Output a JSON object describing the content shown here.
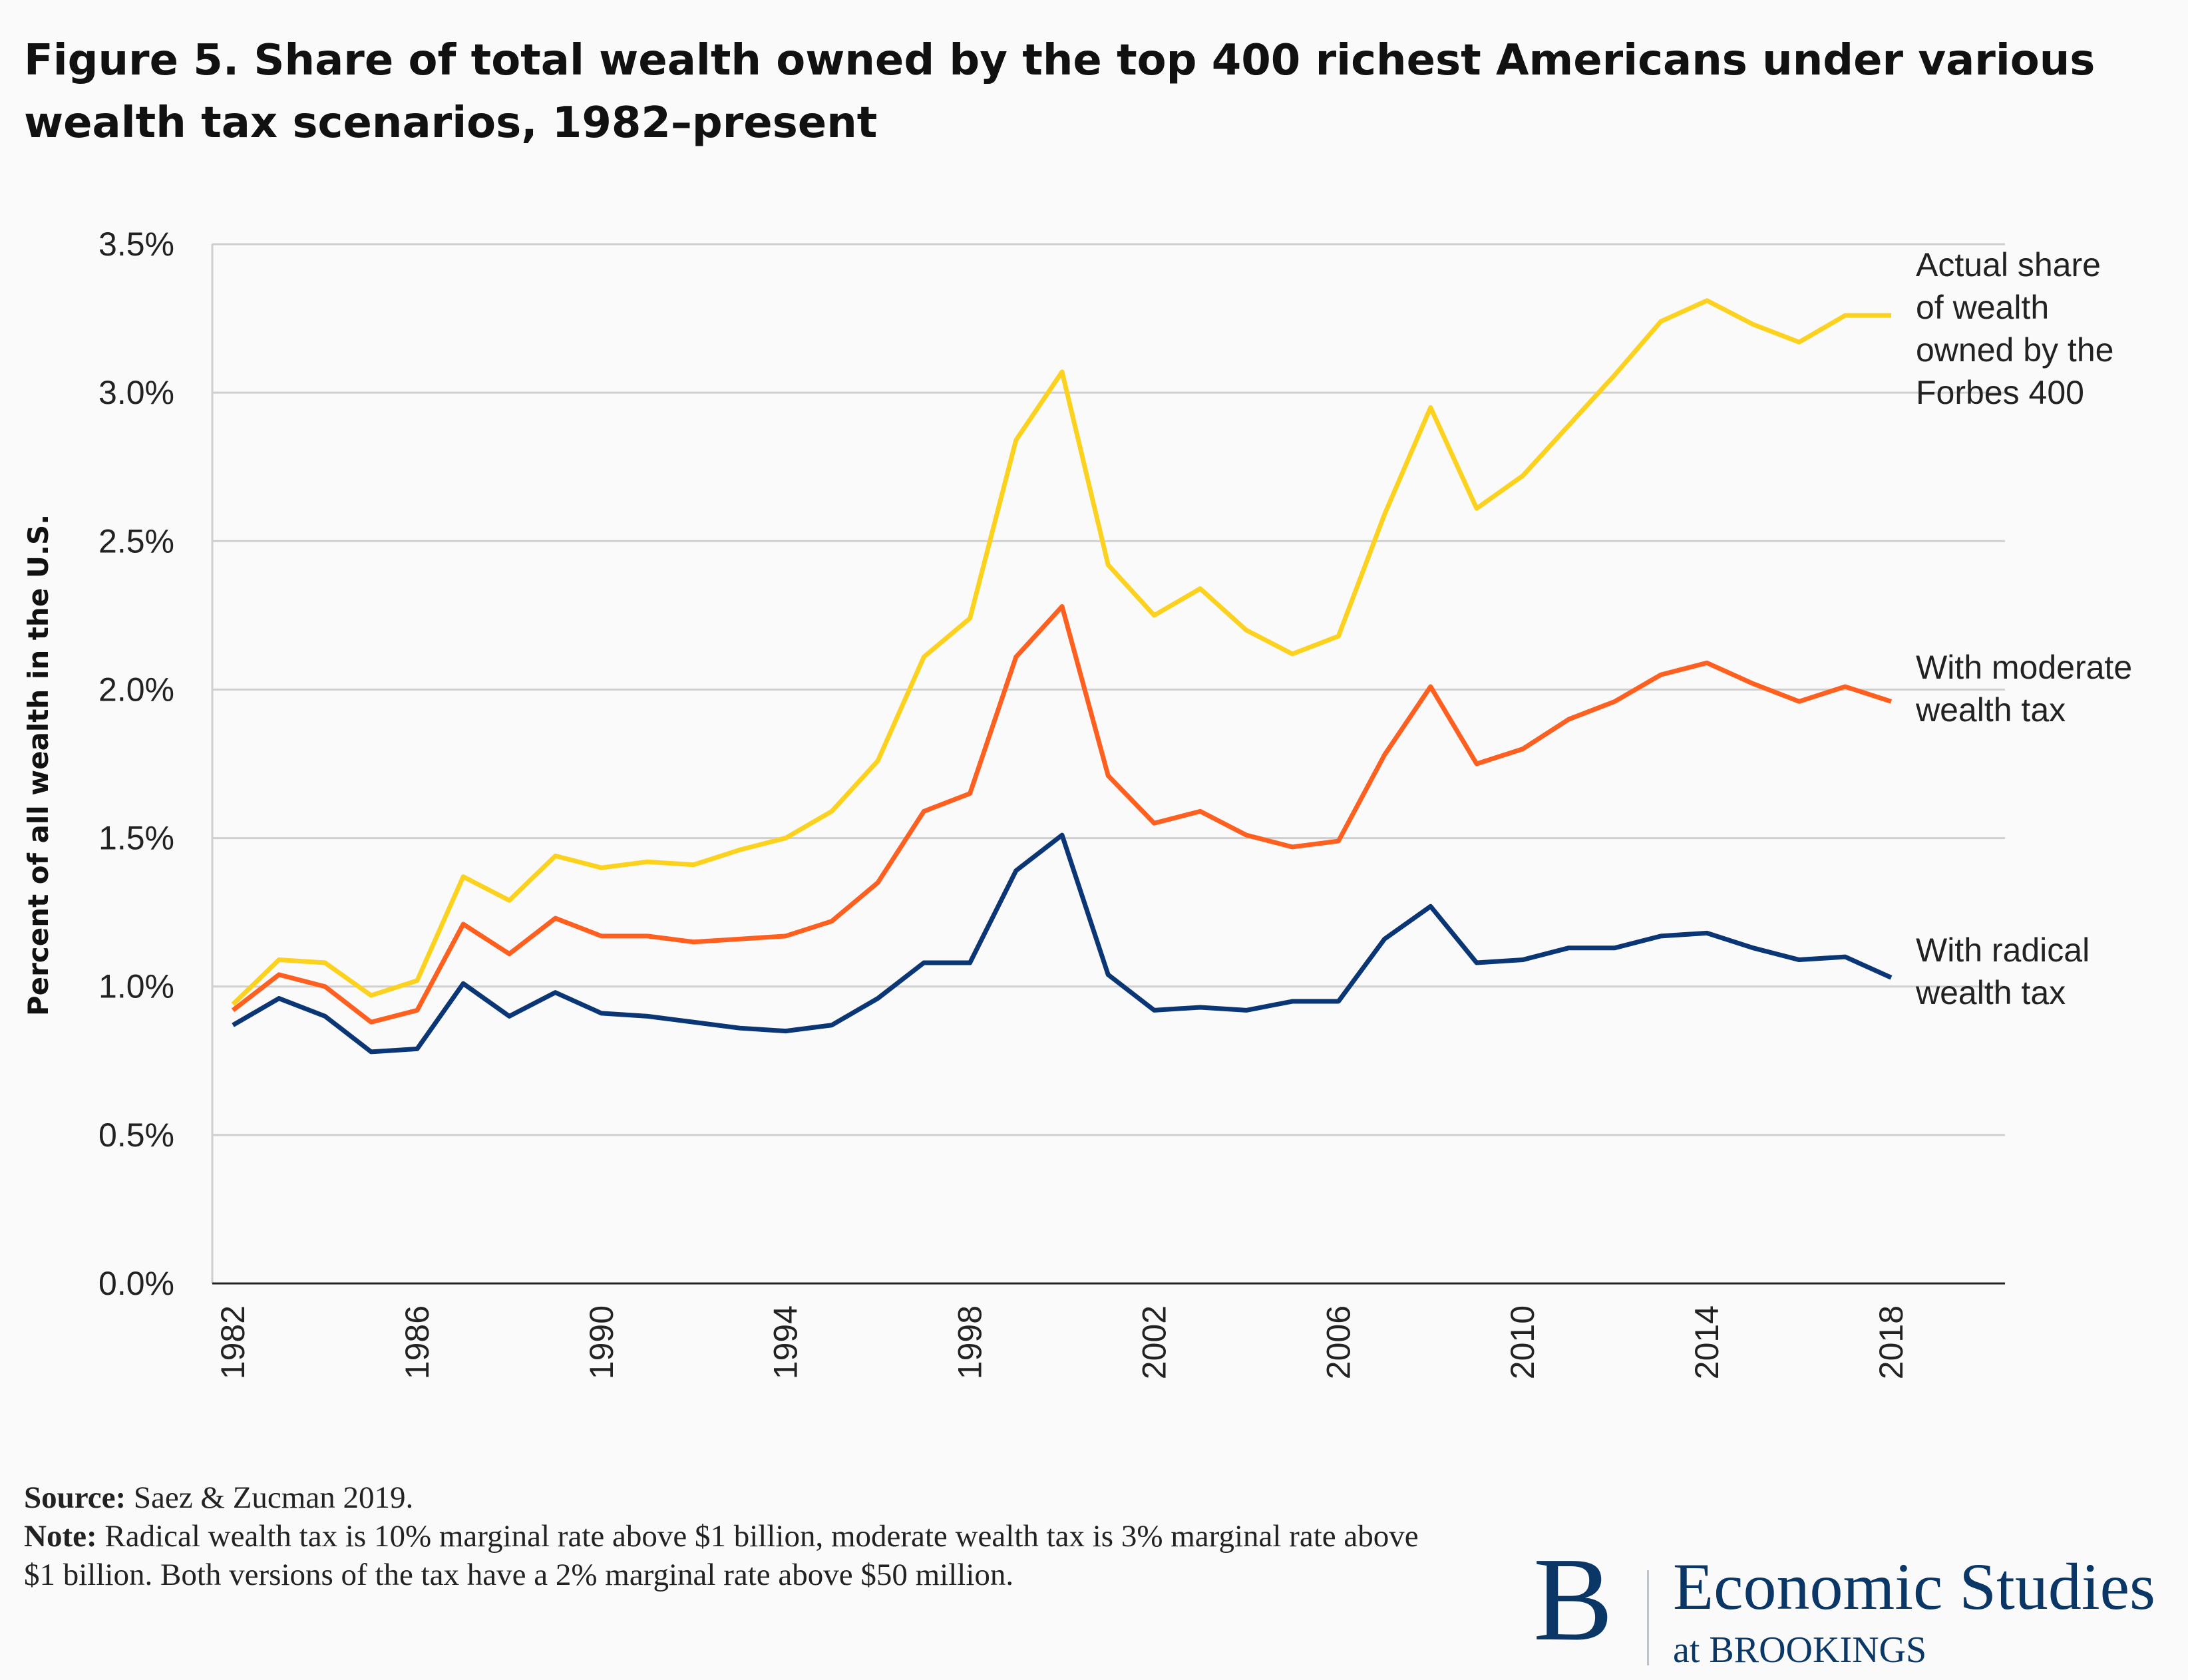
{
  "title": "Figure 5. Share of total wealth owned by the top 400 richest Americans under various wealth tax scenarios, 1982–present",
  "chart_data": {
    "type": "line",
    "title": "Figure 5. Share of total wealth owned by the top 400 richest Americans under various wealth tax scenarios, 1982–present",
    "xlabel": "",
    "ylabel": "Percent of all wealth in the U.S.",
    "ylim": [
      0,
      3.5
    ],
    "xlim": [
      1982,
      2018
    ],
    "grid": "horizontal",
    "legend": "direct labels, right",
    "yticks": [
      "0.0%",
      "0.5%",
      "1.0%",
      "1.5%",
      "2.0%",
      "2.5%",
      "3.0%",
      "3.5%"
    ],
    "xticks": [
      "1982",
      "1986",
      "1990",
      "1994",
      "1998",
      "2002",
      "2006",
      "2010",
      "2014",
      "2018"
    ],
    "x": [
      1982,
      1983,
      1984,
      1985,
      1986,
      1987,
      1988,
      1989,
      1990,
      1991,
      1992,
      1993,
      1994,
      1995,
      1996,
      1997,
      1998,
      1999,
      2000,
      2001,
      2002,
      2003,
      2004,
      2005,
      2006,
      2007,
      2008,
      2009,
      2010,
      2011,
      2012,
      2013,
      2014,
      2015,
      2016,
      2017,
      2018
    ],
    "series": [
      {
        "name": "Actual share of wealth owned by the Forbes 400",
        "label_lines": [
          "Actual share",
          "of wealth",
          "owned by the",
          "Forbes 400"
        ],
        "color": "#fdd21f",
        "values": [
          0.94,
          1.09,
          1.08,
          0.97,
          1.02,
          1.37,
          1.29,
          1.44,
          1.4,
          1.42,
          1.41,
          1.46,
          1.5,
          1.59,
          1.76,
          2.11,
          2.24,
          2.84,
          3.07,
          2.42,
          2.25,
          2.34,
          2.2,
          2.12,
          2.18,
          2.59,
          2.95,
          2.61,
          2.72,
          2.89,
          3.06,
          3.24,
          3.31,
          3.23,
          3.17,
          3.26,
          3.26
        ]
      },
      {
        "name": "With moderate wealth tax",
        "label_lines": [
          "With moderate",
          "wealth tax"
        ],
        "color": "#ff5f1f",
        "values": [
          0.92,
          1.04,
          1.0,
          0.88,
          0.92,
          1.21,
          1.11,
          1.23,
          1.17,
          1.17,
          1.15,
          1.16,
          1.17,
          1.22,
          1.35,
          1.59,
          1.65,
          2.11,
          2.28,
          1.71,
          1.55,
          1.59,
          1.51,
          1.47,
          1.49,
          1.78,
          2.01,
          1.75,
          1.8,
          1.9,
          1.96,
          2.05,
          2.09,
          2.02,
          1.96,
          2.01,
          1.96
        ]
      },
      {
        "name": "With radical wealth tax",
        "label_lines": [
          "With radical",
          "wealth tax"
        ],
        "color": "#0a3675",
        "values": [
          0.87,
          0.96,
          0.9,
          0.78,
          0.79,
          1.01,
          0.9,
          0.98,
          0.91,
          0.9,
          0.88,
          0.86,
          0.85,
          0.87,
          0.96,
          1.08,
          1.08,
          1.39,
          1.51,
          1.04,
          0.92,
          0.93,
          0.92,
          0.95,
          0.95,
          1.16,
          1.27,
          1.08,
          1.09,
          1.13,
          1.13,
          1.17,
          1.18,
          1.13,
          1.09,
          1.1,
          1.03
        ]
      }
    ]
  },
  "notes": {
    "source_label": "Source:",
    "source_text": " Saez & Zucman 2019.",
    "note_label": "Note:",
    "note_text": " Radical wealth tax is 10% marginal rate above $1 billion, moderate wealth tax is 3% marginal rate above $1 billion. Both versions of the tax have a 2% marginal rate above $50 million."
  },
  "logo": {
    "letter": "B",
    "name": "Economic Studies",
    "sub": "at BROOKINGS"
  }
}
